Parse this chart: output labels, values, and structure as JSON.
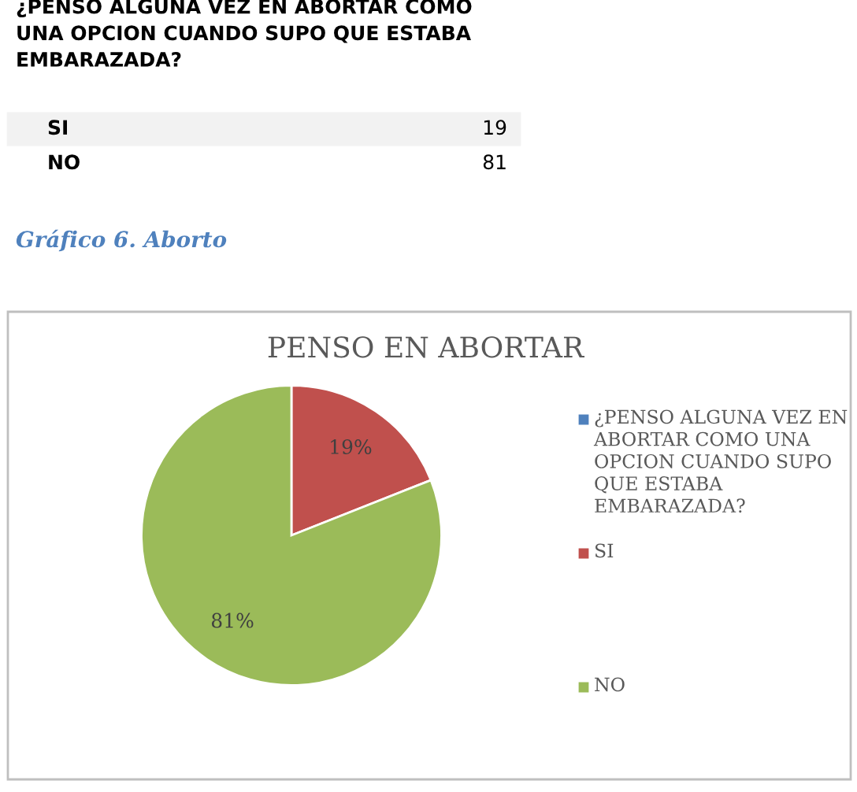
{
  "chart_data": {
    "type": "pie",
    "title": "PENSO EN ABORTAR",
    "categories": [
      "¿PENSO ALGUNA VEZ EN ABORTAR COMO UNA OPCION CUANDO SUPO QUE ESTABA EMBARAZADA?",
      "SI",
      "NO"
    ],
    "values": [
      0,
      19,
      81
    ],
    "colors": [
      "#4f81bd",
      "#c0504d",
      "#9bbb59"
    ],
    "value_labels": [
      null,
      "19%",
      "81%"
    ],
    "legend": "right",
    "annotations": [
      "¿PENSO ALGUNA VEZ EN ABORTAR COMO\nUNA OPCION CUANDO SUPO QUE ESTABA\nEMBARAZADA?",
      "SI",
      "19",
      "NO",
      "81",
      "Gráfico 6. Aborto"
    ]
  }
}
